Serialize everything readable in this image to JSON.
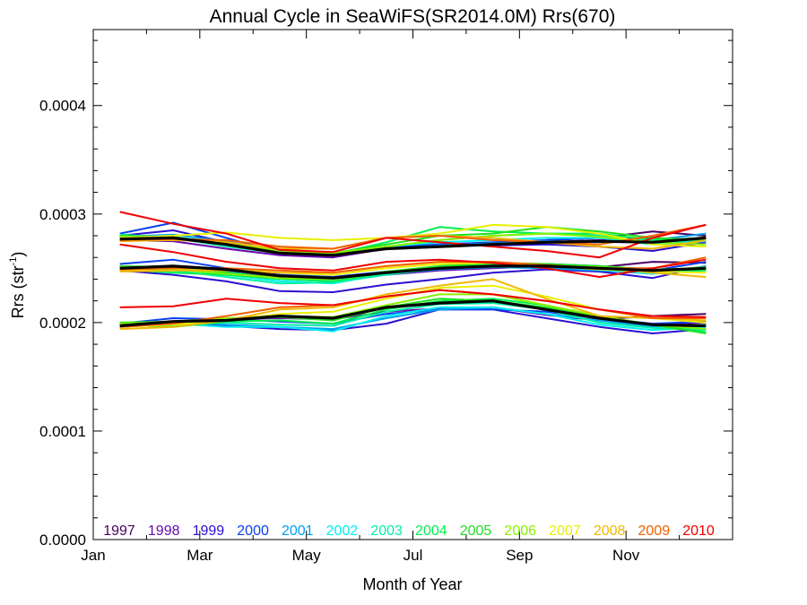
{
  "chart_data": {
    "type": "line",
    "title": "Annual Cycle in SeaWiFS(SR2014.0M) Rrs(670)",
    "xlabel": "Month of Year",
    "ylabel": "Rrs (str",
    "ylabel_sup": "-1",
    "ylabel_close": ")",
    "xlim": [
      1,
      13
    ],
    "ylim": [
      0,
      0.00047
    ],
    "x_ticks": [
      {
        "value": 1,
        "label": "Jan"
      },
      {
        "value": 3,
        "label": "Mar"
      },
      {
        "value": 5,
        "label": "May"
      },
      {
        "value": 7,
        "label": "Jul"
      },
      {
        "value": 9,
        "label": "Sep"
      },
      {
        "value": 11,
        "label": "Nov"
      }
    ],
    "y_ticks": [
      {
        "value": 0,
        "label": "0.0000"
      },
      {
        "value": 0.0001,
        "label": "0.0001"
      },
      {
        "value": 0.0002,
        "label": "0.0002"
      },
      {
        "value": 0.0003,
        "label": "0.0003"
      },
      {
        "value": 0.0004,
        "label": "0.0004"
      }
    ],
    "grid": false,
    "legend_position": "bottom, inside plot",
    "months": [
      1.5,
      2.5,
      3.5,
      4.5,
      5.5,
      6.5,
      7.5,
      8.5,
      9.5,
      10.5,
      11.5,
      12.5
    ],
    "series": [
      {
        "name": "1997",
        "color": "#4a0060",
        "upper": [
          null,
          null,
          null,
          null,
          null,
          null,
          null,
          null,
          0.000276,
          0.000278,
          0.000284,
          0.00028
        ],
        "mid": [
          null,
          null,
          null,
          null,
          null,
          null,
          null,
          null,
          0.000253,
          0.000251,
          0.000256,
          0.000255
        ],
        "lower": [
          null,
          null,
          null,
          null,
          null,
          null,
          null,
          null,
          0.000212,
          0.000203,
          0.000206,
          0.000208
        ]
      },
      {
        "name": "1998",
        "color": "#6a0ab0",
        "upper": [
          0.000276,
          0.000275,
          0.000268,
          0.000262,
          0.00026,
          0.000268,
          0.00027,
          0.000272,
          0.000274,
          0.000276,
          0.000278,
          0.000275
        ],
        "mid": [
          0.00025,
          0.000249,
          0.000246,
          0.000242,
          0.00024,
          0.000244,
          0.000248,
          0.00025,
          0.000252,
          0.000249,
          0.000247,
          0.00025
        ],
        "lower": [
          0.000197,
          0.000201,
          0.000203,
          0.000204,
          0.000203,
          0.00021,
          0.000213,
          0.000214,
          0.000207,
          0.000202,
          0.000198,
          0.0002
        ]
      },
      {
        "name": "1999",
        "color": "#2a10d0",
        "upper": [
          0.00028,
          0.000285,
          0.000274,
          0.000264,
          0.000262,
          0.00027,
          0.000272,
          0.000271,
          0.000272,
          0.00027,
          0.000266,
          0.000274
        ],
        "mid": [
          0.000248,
          0.000244,
          0.000238,
          0.000229,
          0.000228,
          0.000235,
          0.00024,
          0.000246,
          0.000249,
          0.000247,
          0.000241,
          0.000252
        ],
        "lower": [
          0.000196,
          0.000199,
          0.000197,
          0.000194,
          0.000193,
          0.000199,
          0.000212,
          0.000212,
          0.000204,
          0.000196,
          0.00019,
          0.000194
        ]
      },
      {
        "name": "2000",
        "color": "#0a40f0",
        "upper": [
          0.000282,
          0.000292,
          0.000278,
          0.000264,
          0.000262,
          0.000268,
          0.000272,
          0.000274,
          0.000276,
          0.000278,
          0.000275,
          0.000278
        ],
        "mid": [
          0.000254,
          0.000258,
          0.00025,
          0.000244,
          0.000242,
          0.000247,
          0.00025,
          0.000253,
          0.000254,
          0.000252,
          0.000248,
          0.000256
        ],
        "lower": [
          0.000199,
          0.000204,
          0.000203,
          0.000201,
          0.000199,
          0.000208,
          0.000212,
          0.000212,
          0.00021,
          0.000204,
          0.000199,
          0.000201
        ]
      },
      {
        "name": "2001",
        "color": "#00a0f0",
        "upper": [
          0.000279,
          0.000281,
          0.000275,
          0.000266,
          0.000262,
          0.000268,
          0.000271,
          0.000273,
          0.000275,
          0.000274,
          0.000276,
          0.000282
        ],
        "mid": [
          0.000251,
          0.000252,
          0.000247,
          0.00024,
          0.000238,
          0.000245,
          0.000249,
          0.000251,
          0.00025,
          0.000248,
          0.000245,
          0.000252
        ],
        "lower": [
          0.000199,
          0.000201,
          0.000198,
          0.000196,
          0.000194,
          0.000204,
          0.000212,
          0.000214,
          0.000208,
          0.000202,
          0.000196,
          0.000198
        ]
      },
      {
        "name": "2002",
        "color": "#00f0f0",
        "upper": [
          0.000278,
          0.000279,
          0.000273,
          0.000264,
          0.000262,
          0.00027,
          0.000274,
          0.000276,
          0.000278,
          0.000278,
          0.000272,
          0.000275
        ],
        "mid": [
          0.000252,
          0.00025,
          0.000244,
          0.000238,
          0.000236,
          0.000245,
          0.00025,
          0.000254,
          0.000252,
          0.000249,
          0.000245,
          0.000249
        ],
        "lower": [
          0.000197,
          0.000199,
          0.000196,
          0.000196,
          0.000192,
          0.000206,
          0.000214,
          0.000214,
          0.000208,
          0.000198,
          0.000193,
          0.000196
        ]
      },
      {
        "name": "2003",
        "color": "#00f0a8",
        "upper": [
          0.000281,
          0.000278,
          0.00027,
          0.000264,
          0.000264,
          0.00027,
          0.000276,
          0.00028,
          0.000282,
          0.00028,
          0.000274,
          0.000276
        ],
        "mid": [
          0.00025,
          0.000248,
          0.000242,
          0.000236,
          0.000237,
          0.000244,
          0.00025,
          0.000252,
          0.000252,
          0.00025,
          0.000246,
          0.000248
        ],
        "lower": [
          0.000198,
          0.000197,
          0.0002,
          0.000198,
          0.000197,
          0.00021,
          0.000217,
          0.000218,
          0.000212,
          0.0002,
          0.000195,
          0.000193
        ]
      },
      {
        "name": "2004",
        "color": "#00f050",
        "upper": [
          0.000278,
          0.000277,
          0.000272,
          0.000264,
          0.000263,
          0.000274,
          0.000288,
          0.000284,
          0.000282,
          0.000282,
          0.000276,
          0.000278
        ],
        "mid": [
          0.000249,
          0.000246,
          0.000244,
          0.00024,
          0.000238,
          0.000246,
          0.000252,
          0.000254,
          0.000254,
          0.000251,
          0.000249,
          0.000248
        ],
        "lower": [
          0.000198,
          0.000196,
          0.000201,
          0.000202,
          0.000199,
          0.000212,
          0.00022,
          0.000222,
          0.000216,
          0.000206,
          0.000198,
          0.000191
        ]
      },
      {
        "name": "2005",
        "color": "#20e020",
        "upper": [
          0.00028,
          0.000279,
          0.000272,
          0.000266,
          0.000264,
          0.000272,
          0.00028,
          0.000282,
          0.000288,
          0.000284,
          0.000278,
          0.000276
        ],
        "mid": [
          0.000252,
          0.000251,
          0.000246,
          0.000241,
          0.00024,
          0.000247,
          0.000252,
          0.000255,
          0.000254,
          0.000252,
          0.000249,
          0.00025
        ],
        "lower": [
          0.0002,
          0.000201,
          0.000203,
          0.000205,
          0.000202,
          0.000214,
          0.000222,
          0.00022,
          0.000214,
          0.000206,
          0.000198,
          0.00019
        ]
      },
      {
        "name": "2006",
        "color": "#88f000",
        "upper": [
          0.000279,
          0.000278,
          0.000274,
          0.000266,
          0.000264,
          0.00027,
          0.000276,
          0.00028,
          0.000282,
          0.000279,
          0.000274,
          0.000272
        ],
        "mid": [
          0.000251,
          0.000249,
          0.000245,
          0.000241,
          0.00024,
          0.000246,
          0.00025,
          0.000252,
          0.000252,
          0.000251,
          0.000248,
          0.000251
        ],
        "lower": [
          0.000199,
          0.000201,
          0.000204,
          0.000206,
          0.000205,
          0.000216,
          0.000226,
          0.000226,
          0.000216,
          0.000206,
          0.000198,
          0.000194
        ]
      },
      {
        "name": "2007",
        "color": "#e8f000",
        "upper": [
          0.000278,
          0.00028,
          0.000283,
          0.000278,
          0.000276,
          0.000278,
          0.000282,
          0.00029,
          0.000288,
          0.000282,
          0.000272,
          0.00027
        ],
        "mid": [
          0.000248,
          0.00025,
          0.000249,
          0.000246,
          0.000244,
          0.00025,
          0.000254,
          0.000255,
          0.000252,
          0.000249,
          0.000247,
          0.000246
        ],
        "lower": [
          0.000196,
          0.000198,
          0.000202,
          0.000208,
          0.00021,
          0.000222,
          0.000232,
          0.000234,
          0.000224,
          0.000212,
          0.000204,
          0.0002
        ]
      },
      {
        "name": "2008",
        "color": "#f0b800",
        "upper": [
          0.000275,
          0.000276,
          0.000274,
          0.000268,
          0.000268,
          0.000278,
          0.00028,
          0.000278,
          0.000274,
          0.00027,
          0.000268,
          0.000276
        ],
        "mid": [
          0.000247,
          0.000248,
          0.000248,
          0.000246,
          0.000246,
          0.000252,
          0.000256,
          0.000256,
          0.000252,
          0.00025,
          0.000246,
          0.000242
        ],
        "lower": [
          0.000194,
          0.000196,
          0.000202,
          0.000212,
          0.000214,
          0.000226,
          0.000234,
          0.00024,
          0.000222,
          0.000206,
          0.000204,
          0.000202
        ]
      },
      {
        "name": "2009",
        "color": "#f06000",
        "upper": [
          0.000276,
          0.000277,
          0.000276,
          0.00027,
          0.000268,
          0.000278,
          0.00028,
          0.000276,
          0.000274,
          0.000272,
          0.00028,
          0.00029
        ],
        "mid": [
          0.000249,
          0.00025,
          0.00025,
          0.000248,
          0.000246,
          0.000252,
          0.000256,
          0.000256,
          0.000253,
          0.00025,
          0.00025,
          0.00026
        ],
        "lower": [
          0.000196,
          0.000199,
          0.000206,
          0.000214,
          0.000216,
          0.000224,
          0.00023,
          0.000226,
          0.00022,
          0.000212,
          0.000204,
          0.000204
        ]
      },
      {
        "name": "2010",
        "color": "#f00000",
        "upper": [
          0.000302,
          0.000291,
          0.000282,
          0.000267,
          0.000265,
          0.000278,
          0.000274,
          0.00027,
          0.000266,
          0.00026,
          0.000278,
          0.00029
        ],
        "mid": [
          0.000272,
          0.000265,
          0.000256,
          0.00025,
          0.000248,
          0.000256,
          0.000258,
          0.000255,
          0.00025,
          0.000242,
          0.00025,
          0.000258
        ],
        "lower": [
          0.000214,
          0.000215,
          0.000222,
          0.000218,
          0.000216,
          0.000224,
          0.00023,
          0.000226,
          0.00022,
          0.000212,
          0.000206,
          0.000205
        ]
      }
    ],
    "climatology": {
      "color": "#000000",
      "upper": [
        0.000277,
        0.000278,
        0.000272,
        0.000264,
        0.000262,
        0.000268,
        0.00027,
        0.000272,
        0.000274,
        0.000275,
        0.000274,
        0.000278
      ],
      "mid": [
        0.00025,
        0.000252,
        0.000249,
        0.000243,
        0.000241,
        0.000246,
        0.00025,
        0.000252,
        0.000252,
        0.00025,
        0.000248,
        0.00025
      ],
      "lower": [
        0.000197,
        0.000201,
        0.000202,
        0.000206,
        0.000204,
        0.000214,
        0.000218,
        0.00022,
        0.000212,
        0.000204,
        0.000198,
        0.000197
      ]
    }
  }
}
